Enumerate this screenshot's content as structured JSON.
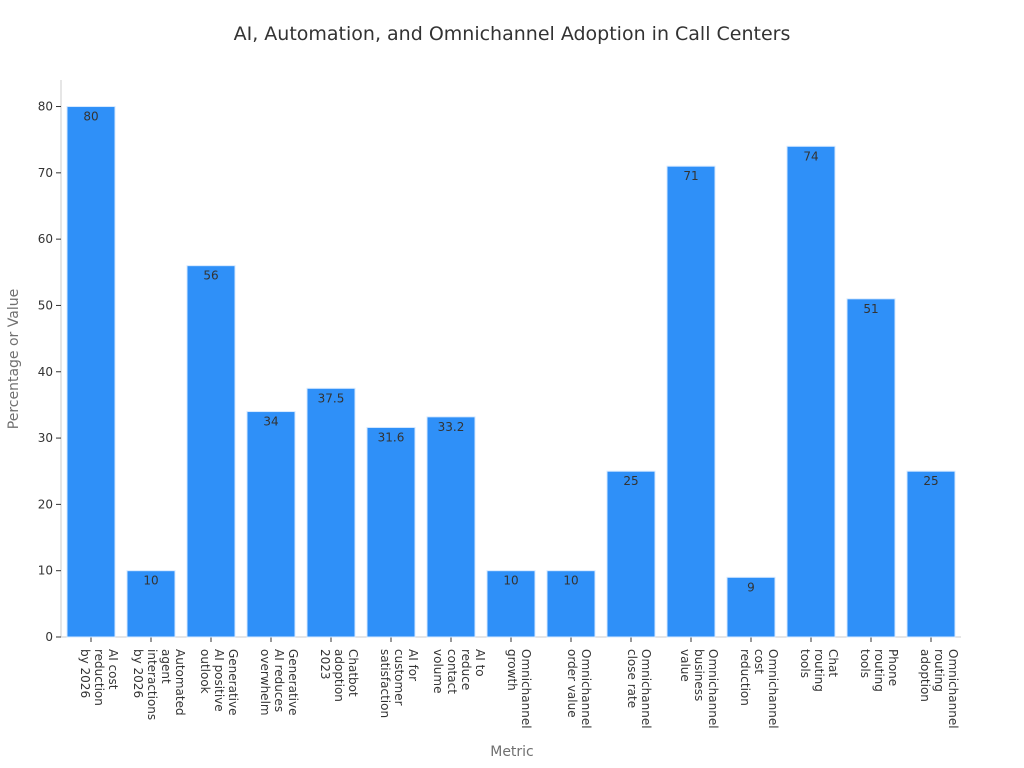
{
  "chart_data": {
    "type": "bar",
    "title": "AI, Automation, and Omnichannel Adoption in Call Centers",
    "xlabel": "Metric",
    "ylabel": "Percentage or Value",
    "ylim": [
      0,
      84
    ],
    "yticks": [
      0,
      10,
      20,
      30,
      40,
      50,
      60,
      70,
      80
    ],
    "grid": false,
    "bar_color": "#2f90f8",
    "bar_edge_color": "#d6e9ff",
    "categories": [
      [
        "AI cost",
        "reduction",
        "by 2026"
      ],
      [
        "Automated",
        "agent",
        "interactions",
        "by 2026"
      ],
      [
        "Generative",
        "AI positive",
        "outlook"
      ],
      [
        "Generative",
        "AI reduces",
        "overwhelm"
      ],
      [
        "Chatbot",
        "adoption",
        "2023"
      ],
      [
        "AI for",
        "customer",
        "satisfaction"
      ],
      [
        "AI to",
        "reduce",
        "contact",
        "volume"
      ],
      [
        "Omnichannel",
        "growth"
      ],
      [
        "Omnichannel",
        "order value"
      ],
      [
        "Omnichannel",
        "close rate"
      ],
      [
        "Omnichannel",
        "business",
        "value"
      ],
      [
        "Omnichannel",
        "cost",
        "reduction"
      ],
      [
        "Chat",
        "routing",
        "tools"
      ],
      [
        "Phone",
        "routing",
        "tools"
      ],
      [
        "Omnichannel",
        "routing",
        "adoption"
      ]
    ],
    "values": [
      80,
      10,
      56,
      34,
      37.5,
      31.6,
      33.2,
      10,
      10,
      25,
      71,
      9,
      74,
      51,
      25
    ],
    "value_labels": [
      "80",
      "10",
      "56",
      "34",
      "37.5",
      "31.6",
      "33.2",
      "10",
      "10",
      "25",
      "71",
      "9",
      "74",
      "51",
      "25"
    ]
  }
}
